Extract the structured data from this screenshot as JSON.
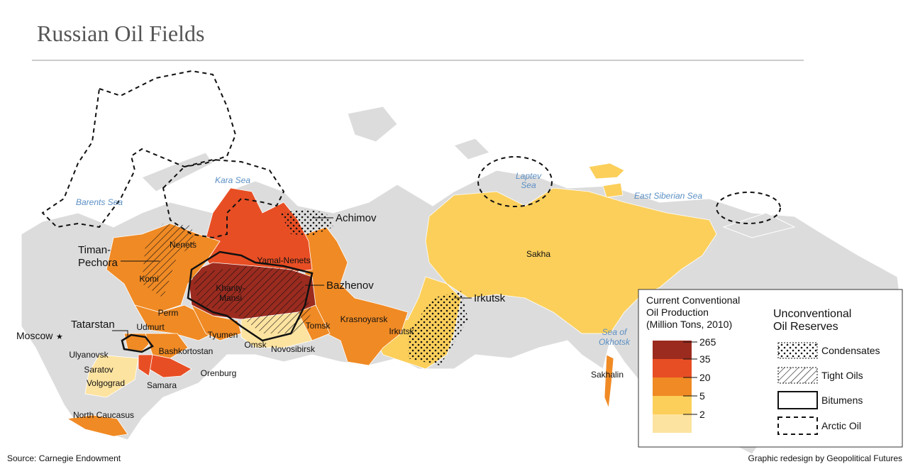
{
  "title": "Russian Oil Fields",
  "seas": [
    [
      "Barents Sea"
    ],
    [
      "Kara Sea"
    ],
    [
      "Laptev",
      "Sea"
    ],
    [
      "East Siberian Sea"
    ],
    [
      "Sea of",
      "Okhotsk"
    ]
  ],
  "regions": [
    [
      "Nenets"
    ],
    [
      "Komi"
    ],
    [
      "Yamal-Nenets"
    ],
    [
      "Khanty-",
      "Mansi"
    ],
    [
      "Perm"
    ],
    [
      "Udmurt"
    ],
    [
      "Bashkortostan"
    ],
    [
      "Orenburg"
    ],
    [
      "Samara"
    ],
    [
      "Ulyanovsk"
    ],
    [
      "Saratov"
    ],
    [
      "Volgograd"
    ],
    [
      "North Caucasus"
    ],
    [
      "Tyumen"
    ],
    [
      "Omsk"
    ],
    [
      "Novosibirsk"
    ],
    [
      "Tomsk"
    ],
    [
      "Krasnoyarsk"
    ],
    [
      "Irkutsk"
    ],
    [
      "Sakha"
    ],
    [
      "Sakhalin"
    ]
  ],
  "reserves": [
    [
      "Achimov"
    ],
    [
      "Bazhenov"
    ],
    [
      "Irkutsk"
    ],
    [
      "Timan-",
      "Pechora"
    ],
    [
      "Tatarstan"
    ]
  ],
  "cities": [
    [
      "Moscow"
    ]
  ],
  "legend": {
    "production_title": [
      "Current Conventional",
      "Oil Production",
      "(Million Tons, 2010)"
    ],
    "production_breaks": [
      265,
      35,
      20,
      5,
      2
    ],
    "production_colors": [
      "#9b2b1f",
      "#e84e24",
      "#f08a24",
      "#fbcf5a",
      "#fde3a0"
    ],
    "reserves_title": [
      "Unconventional",
      "Oil Reserves"
    ],
    "reserves_items": [
      "Condensates",
      "Tight Oils",
      "Bitumens",
      "Arctic Oil"
    ]
  },
  "source": "Source: Carnegie Endowment",
  "credit": "Graphic redesign by Geopolitical Futures"
}
